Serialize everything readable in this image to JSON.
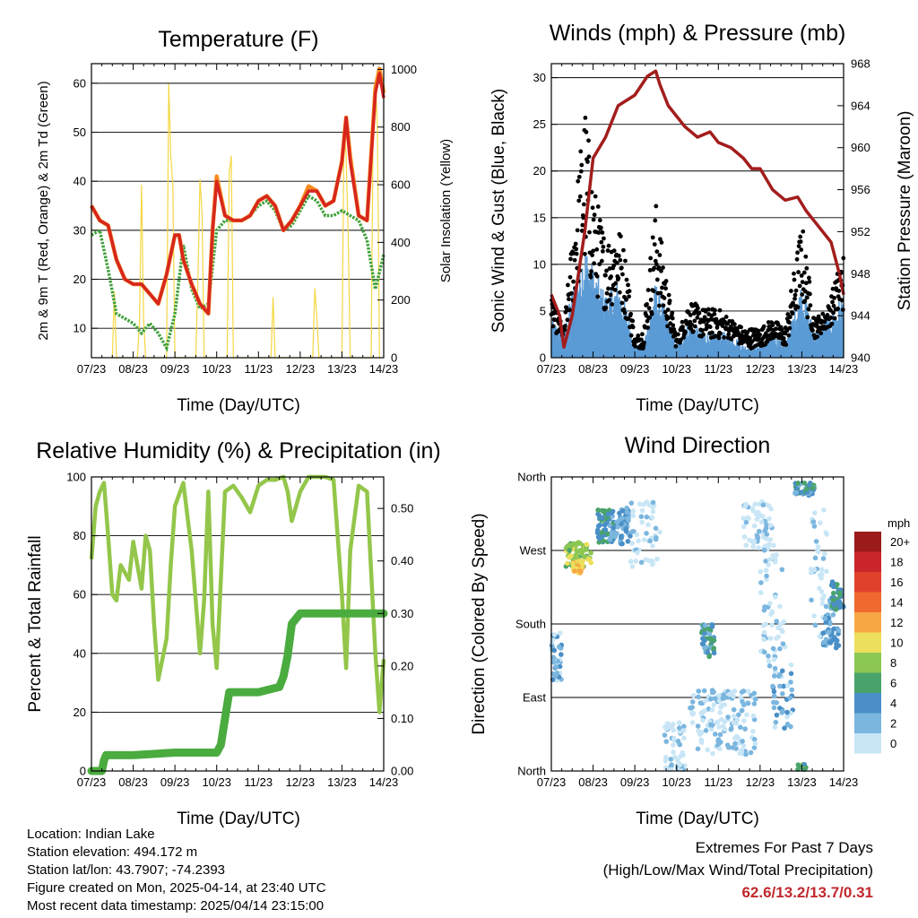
{
  "chart_data": [
    {
      "id": "temperature",
      "type": "line",
      "title": "Temperature (F)",
      "xlabel": "Time (Day/UTC)",
      "ylabel": "2m & 9m T (Red, Orange) & 2m Td (Green)",
      "ylabel_right": "Solar Insolation (Yellow)",
      "x_ticks": [
        "07/23",
        "08/23",
        "09/23",
        "10/23",
        "11/23",
        "12/23",
        "13/23",
        "14/23"
      ],
      "ylim": [
        4,
        64
      ],
      "yticks": [
        10,
        20,
        30,
        40,
        50,
        60
      ],
      "ylim_right": [
        0,
        1020
      ],
      "yticks_right": [
        0,
        200,
        400,
        600,
        800,
        1000
      ],
      "grid": true,
      "colors": {
        "t2m": "#d7261e",
        "t9m": "#f58b1f",
        "td": "#3fa03a",
        "solar": "#f5d742"
      },
      "series": [
        {
          "key": "t9m",
          "x": [
            0,
            0.2,
            0.4,
            0.6,
            0.8,
            1.0,
            1.2,
            1.4,
            1.6,
            1.8,
            2.0,
            2.1,
            2.2,
            2.4,
            2.6,
            2.8,
            2.9,
            3.0,
            3.2,
            3.4,
            3.6,
            3.8,
            4.0,
            4.2,
            4.4,
            4.6,
            4.8,
            5.0,
            5.2,
            5.4,
            5.6,
            5.8,
            6.0,
            6.1,
            6.2,
            6.4,
            6.6,
            6.8,
            6.9,
            7.0
          ],
          "values": [
            35,
            32,
            31,
            24,
            20,
            19,
            19,
            17,
            15,
            21,
            29,
            29,
            24,
            19,
            15,
            13,
            30,
            41,
            33,
            32,
            32,
            33,
            36,
            37,
            35,
            30,
            32,
            35,
            39,
            38,
            35,
            36,
            44,
            53,
            45,
            33,
            32,
            59,
            63,
            58
          ]
        },
        {
          "key": "t2m",
          "x": [
            0,
            0.2,
            0.4,
            0.6,
            0.8,
            1.0,
            1.2,
            1.4,
            1.6,
            1.8,
            2.0,
            2.1,
            2.2,
            2.4,
            2.6,
            2.8,
            2.9,
            3.0,
            3.2,
            3.4,
            3.6,
            3.8,
            4.0,
            4.2,
            4.4,
            4.6,
            4.8,
            5.0,
            5.2,
            5.4,
            5.6,
            5.8,
            6.0,
            6.1,
            6.2,
            6.4,
            6.6,
            6.8,
            6.9,
            7.0
          ],
          "values": [
            35,
            32,
            31,
            24,
            20,
            19,
            19,
            17,
            15,
            21,
            29,
            29,
            24,
            19,
            15,
            13,
            30,
            40,
            33,
            32,
            32,
            33,
            36,
            37,
            35,
            30,
            32,
            35,
            38,
            38,
            35,
            36,
            44,
            53,
            44,
            33,
            32,
            58,
            62,
            57
          ]
        },
        {
          "key": "td",
          "x": [
            0,
            0.2,
            0.4,
            0.6,
            0.8,
            1.0,
            1.2,
            1.4,
            1.6,
            1.8,
            2.0,
            2.2,
            2.4,
            2.6,
            2.8,
            3.0,
            3.2,
            3.4,
            3.6,
            3.8,
            4.0,
            4.2,
            4.4,
            4.6,
            4.8,
            5.0,
            5.2,
            5.4,
            5.6,
            5.8,
            6.0,
            6.2,
            6.4,
            6.6,
            6.8,
            7.0
          ],
          "values": [
            29,
            30,
            22,
            13,
            12,
            11,
            9,
            11,
            9,
            6,
            13,
            27,
            18,
            14,
            15,
            30,
            32,
            32,
            32,
            33,
            35,
            36,
            34,
            30,
            31,
            34,
            37,
            36,
            33,
            33,
            34,
            33,
            32,
            28,
            18,
            25
          ]
        },
        {
          "key": "solar",
          "x": [
            0.5,
            0.55,
            0.6,
            1.1,
            1.15,
            1.2,
            1.25,
            1.3,
            1.8,
            1.85,
            1.9,
            1.95,
            2.0,
            2.5,
            2.55,
            2.6,
            2.65,
            2.7,
            3.25,
            3.3,
            3.35,
            3.4,
            4.3,
            4.35,
            4.4,
            5.3,
            5.35,
            5.4,
            5.45,
            6.0,
            6.05,
            6.1,
            6.15,
            6.2,
            6.7,
            6.75,
            6.8,
            6.85,
            6.9
          ],
          "values": [
            0,
            230,
            0,
            0,
            120,
            600,
            130,
            0,
            0,
            950,
            700,
            600,
            0,
            0,
            280,
            620,
            500,
            0,
            0,
            640,
            700,
            0,
            0,
            210,
            0,
            0,
            240,
            140,
            0,
            0,
            810,
            700,
            420,
            0,
            0,
            860,
            960,
            800,
            0
          ]
        }
      ]
    },
    {
      "id": "winds",
      "type": "scatter",
      "title": "Winds (mph) & Pressure (mb)",
      "xlabel": "Time (Day/UTC)",
      "ylabel": "Sonic Wind & Gust (Blue, Black)",
      "ylabel_right": "Station Pressure (Maroon)",
      "x_ticks": [
        "07/23",
        "08/23",
        "09/23",
        "10/23",
        "11/23",
        "12/23",
        "13/23",
        "14/23"
      ],
      "ylim": [
        0,
        31.5
      ],
      "yticks": [
        0,
        5,
        10,
        15,
        20,
        25,
        30
      ],
      "ylim_right": [
        940,
        968
      ],
      "yticks_right": [
        940,
        944,
        948,
        952,
        956,
        960,
        964,
        968
      ],
      "grid": true,
      "colors": {
        "wind": "#5b9bd5",
        "gust": "#000000",
        "pressure": "#a31d1d"
      },
      "gust_envelope": {
        "x": [
          0,
          0.3,
          0.6,
          0.8,
          1.0,
          1.3,
          1.6,
          1.8,
          2.0,
          2.2,
          2.5,
          2.8,
          3.0,
          3.3,
          3.6,
          4.0,
          4.3,
          4.6,
          5.0,
          5.3,
          5.6,
          6.0,
          6.3,
          6.6,
          7.0
        ],
        "values": [
          6,
          3,
          17,
          26,
          18,
          12,
          14,
          10,
          2,
          3,
          16,
          7,
          2,
          6,
          5,
          5,
          4,
          3,
          3,
          4,
          3,
          14,
          4,
          5,
          11
        ]
      },
      "wind_envelope": {
        "x": [
          0,
          0.3,
          0.6,
          0.8,
          1.0,
          1.3,
          1.6,
          1.8,
          2.0,
          2.2,
          2.5,
          2.8,
          3.0,
          3.3,
          3.6,
          4.0,
          4.3,
          4.6,
          5.0,
          5.3,
          5.6,
          6.0,
          6.3,
          6.6,
          7.0
        ],
        "values": [
          3,
          2,
          7,
          9,
          7,
          5,
          6,
          4,
          1,
          1,
          6,
          3,
          1,
          3,
          2,
          2,
          2,
          1,
          1,
          2,
          1,
          6,
          2,
          3,
          5
        ]
      },
      "pressure": {
        "x": [
          0,
          0.2,
          0.3,
          0.5,
          0.8,
          1.0,
          1.3,
          1.6,
          2.0,
          2.3,
          2.5,
          2.6,
          2.8,
          3.0,
          3.2,
          3.5,
          3.8,
          4.0,
          4.3,
          4.6,
          4.8,
          5.0,
          5.3,
          5.6,
          5.9,
          6.1,
          6.3,
          6.5,
          6.7,
          6.9,
          7.0
        ],
        "values": [
          946,
          944,
          941,
          944,
          952,
          959,
          961,
          964,
          965,
          966.8,
          967.3,
          966,
          964,
          963,
          962,
          961,
          961.5,
          960.5,
          960,
          959,
          958,
          958,
          956,
          955,
          955.3,
          954,
          953,
          952,
          951,
          948,
          946
        ]
      }
    },
    {
      "id": "humidity",
      "type": "line",
      "title": "Relative Humidity (%) & Precipitation (in)",
      "xlabel": "Time (Day/UTC)",
      "ylabel": "Percent & Total Rainfall",
      "x_ticks": [
        "07/23",
        "08/23",
        "09/23",
        "10/23",
        "11/23",
        "12/23",
        "13/23",
        "14/23"
      ],
      "ylim": [
        0,
        100
      ],
      "yticks": [
        0,
        20,
        40,
        60,
        80,
        100
      ],
      "ylim_right": [
        0,
        0.56
      ],
      "yticks_right": [
        "0.00",
        "0.10",
        "0.20",
        "0.30",
        "0.40",
        "0.50"
      ],
      "grid": true,
      "colors": {
        "rh": "#93c64a",
        "precip": "#4aab3f"
      },
      "series": [
        {
          "key": "rh",
          "x": [
            0,
            0.1,
            0.2,
            0.3,
            0.4,
            0.5,
            0.6,
            0.7,
            0.9,
            1.0,
            1.2,
            1.3,
            1.4,
            1.5,
            1.6,
            1.8,
            1.9,
            2.0,
            2.2,
            2.4,
            2.6,
            2.7,
            2.8,
            2.9,
            3.0,
            3.2,
            3.4,
            3.6,
            3.8,
            4.0,
            4.2,
            4.4,
            4.6,
            4.7,
            4.8,
            5.0,
            5.2,
            5.4,
            5.6,
            5.8,
            6.0,
            6.1,
            6.2,
            6.4,
            6.6,
            6.8,
            6.9,
            7.0
          ],
          "values": [
            72,
            90,
            95,
            98,
            80,
            60,
            58,
            70,
            65,
            78,
            62,
            80,
            75,
            50,
            31,
            45,
            70,
            90,
            98,
            75,
            40,
            58,
            95,
            50,
            35,
            95,
            97,
            93,
            88,
            97,
            99,
            99,
            100,
            95,
            85,
            95,
            100,
            100,
            100,
            99,
            60,
            35,
            75,
            97,
            95,
            40,
            20,
            38
          ]
        },
        {
          "key": "precip",
          "x": [
            0,
            0.25,
            0.3,
            0.35,
            1.0,
            2.0,
            3.0,
            3.1,
            3.2,
            3.3,
            4.0,
            4.5,
            4.6,
            4.7,
            4.8,
            5.0,
            6.0,
            6.8,
            7.0
          ],
          "values": [
            0,
            0,
            0.02,
            0.03,
            0.03,
            0.035,
            0.035,
            0.05,
            0.1,
            0.15,
            0.15,
            0.16,
            0.18,
            0.22,
            0.28,
            0.3,
            0.3,
            0.3,
            0.3
          ]
        }
      ]
    },
    {
      "id": "direction",
      "type": "scatter",
      "title": "Wind Direction",
      "xlabel": "Time (Day/UTC)",
      "ylabel": "Direction (Colored By Speed)",
      "x_ticks": [
        "07/23",
        "08/23",
        "09/23",
        "10/23",
        "11/23",
        "12/23",
        "13/23",
        "14/23"
      ],
      "y_labels": [
        "North",
        "East",
        "South",
        "West",
        "North"
      ],
      "ylim": [
        0,
        360
      ],
      "grid": true,
      "legend": {
        "title": "mph",
        "placement": "right",
        "labels": [
          "20+",
          "18",
          "16",
          "14",
          "12",
          "10",
          "8",
          "6",
          "4",
          "2",
          "0"
        ],
        "colors": [
          "#9b1a1a",
          "#c9252a",
          "#e0412d",
          "#f0692f",
          "#f8a745",
          "#ecdf5b",
          "#8cc653",
          "#4aa36b",
          "#4a8fc7",
          "#7bb6df",
          "#c9e6f6"
        ]
      }
    }
  ],
  "info": {
    "location": "Location: Indian Lake",
    "elevation": "Station elevation: 494.172 m",
    "latlon": "Station lat/lon: 43.7907; -74.2393",
    "created": "Figure created on Mon, 2025-04-14, at 23:40 UTC",
    "recent": "Most recent data timestamp: 2025/04/14 23:15:00"
  },
  "extremes": {
    "title": "Extremes For Past 7 Days",
    "subtitle": "(High/Low/Max Wind/Total Precipitation)",
    "values": "62.6/13.2/13.7/0.31"
  }
}
